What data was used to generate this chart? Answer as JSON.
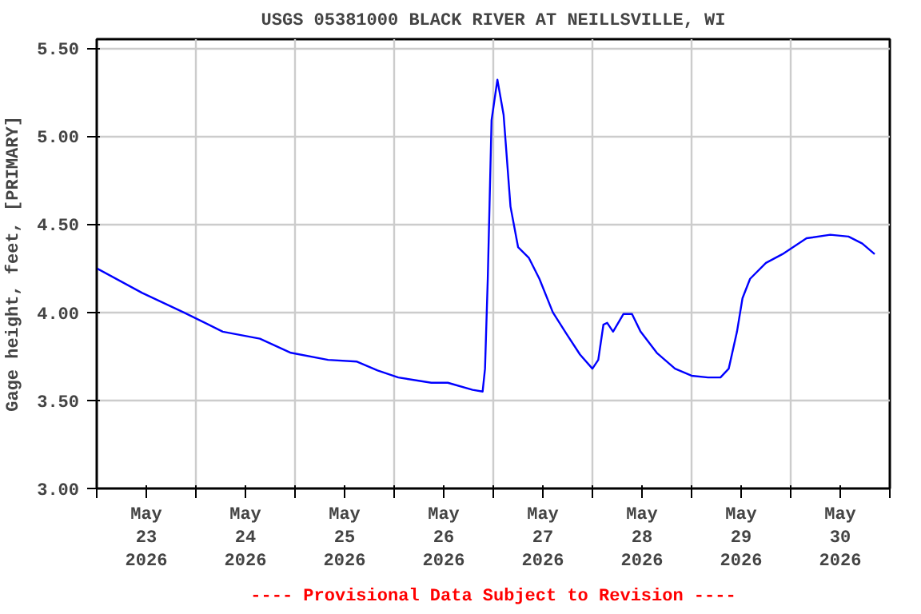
{
  "chart_data": {
    "type": "line",
    "title": "USGS 05381000 BLACK RIVER AT NEILLSVILLE, WI",
    "ylabel": "Gage height, feet, [PRIMARY]",
    "annotations": [
      "---- Provisional Data Subject to Revision ----"
    ],
    "x": [
      "2026-05-23T00:00",
      "2026-05-23T11:00",
      "2026-05-23T21:00",
      "2026-05-24T06:30",
      "2026-05-24T15:30",
      "2026-05-24T23:00",
      "2026-05-25T08:00",
      "2026-05-25T15:00",
      "2026-05-25T20:00",
      "2026-05-26T01:00",
      "2026-05-26T09:00",
      "2026-05-26T13:00",
      "2026-05-26T19:00",
      "2026-05-26T21:25",
      "2026-05-26T22:00",
      "2026-05-26T22:40",
      "2026-05-26T23:35",
      "2026-05-27T01:00",
      "2026-05-27T02:30",
      "2026-05-27T04:10",
      "2026-05-27T06:00",
      "2026-05-27T08:35",
      "2026-05-27T11:10",
      "2026-05-27T14:25",
      "2026-05-27T17:40",
      "2026-05-27T21:00",
      "2026-05-28T00:00",
      "2026-05-28T01:25",
      "2026-05-28T02:40",
      "2026-05-28T03:35",
      "2026-05-28T05:00",
      "2026-05-28T07:30",
      "2026-05-28T09:35",
      "2026-05-28T11:40",
      "2026-05-28T15:35",
      "2026-05-28T20:00",
      "2026-05-29T00:00",
      "2026-05-29T04:00",
      "2026-05-29T07:00",
      "2026-05-29T09:00",
      "2026-05-29T11:00",
      "2026-05-29T12:20",
      "2026-05-29T14:10",
      "2026-05-29T18:00",
      "2026-05-29T22:00",
      "2026-05-30T03:50",
      "2026-05-30T09:35",
      "2026-05-30T14:00",
      "2026-05-30T17:20",
      "2026-05-30T20:20"
    ],
    "series": [
      {
        "color": "#0000ff",
        "values": [
          4.25,
          4.11,
          4.0,
          3.89,
          3.85,
          3.77,
          3.73,
          3.72,
          3.67,
          3.63,
          3.6,
          3.6,
          3.56,
          3.55,
          3.68,
          4.19,
          5.09,
          5.32,
          5.12,
          4.6,
          4.37,
          4.31,
          4.19,
          4.0,
          3.88,
          3.76,
          3.68,
          3.73,
          3.93,
          3.94,
          3.89,
          3.99,
          3.99,
          3.89,
          3.77,
          3.68,
          3.64,
          3.63,
          3.63,
          3.68,
          3.89,
          4.08,
          4.19,
          4.28,
          4.33,
          4.42,
          4.44,
          4.43,
          4.39,
          4.33
        ]
      }
    ],
    "xlim": [
      "2026-05-23T00:00",
      "2026-05-31T00:00"
    ],
    "xticks": [
      {
        "value": "2026-05-23T00:00",
        "label": null
      },
      {
        "value": "2026-05-23T12:00",
        "label": "May\n23\n2026"
      },
      {
        "value": "2026-05-24T00:00",
        "label": null
      },
      {
        "value": "2026-05-24T12:00",
        "label": "May\n24\n2026"
      },
      {
        "value": "2026-05-25T00:00",
        "label": null
      },
      {
        "value": "2026-05-25T12:00",
        "label": "May\n25\n2026"
      },
      {
        "value": "2026-05-26T00:00",
        "label": null
      },
      {
        "value": "2026-05-26T12:00",
        "label": "May\n26\n2026"
      },
      {
        "value": "2026-05-27T00:00",
        "label": null
      },
      {
        "value": "2026-05-27T12:00",
        "label": "May\n27\n2026"
      },
      {
        "value": "2026-05-28T00:00",
        "label": null
      },
      {
        "value": "2026-05-28T12:00",
        "label": "May\n28\n2026"
      },
      {
        "value": "2026-05-29T00:00",
        "label": null
      },
      {
        "value": "2026-05-29T12:00",
        "label": "May\n29\n2026"
      },
      {
        "value": "2026-05-30T00:00",
        "label": null
      },
      {
        "value": "2026-05-30T12:00",
        "label": "May\n30\n2026"
      },
      {
        "value": "2026-05-31T00:00",
        "label": null
      }
    ],
    "ylim": [
      3.0,
      5.55
    ],
    "yticks": [
      {
        "value": 3.0,
        "label": "3.00"
      },
      {
        "value": 3.5,
        "label": "3.50"
      },
      {
        "value": 4.0,
        "label": "4.00"
      },
      {
        "value": 4.5,
        "label": "4.50"
      },
      {
        "value": 5.0,
        "label": "5.00"
      },
      {
        "value": 5.5,
        "label": "5.50"
      }
    ],
    "grid": true,
    "line_style": "solid"
  }
}
